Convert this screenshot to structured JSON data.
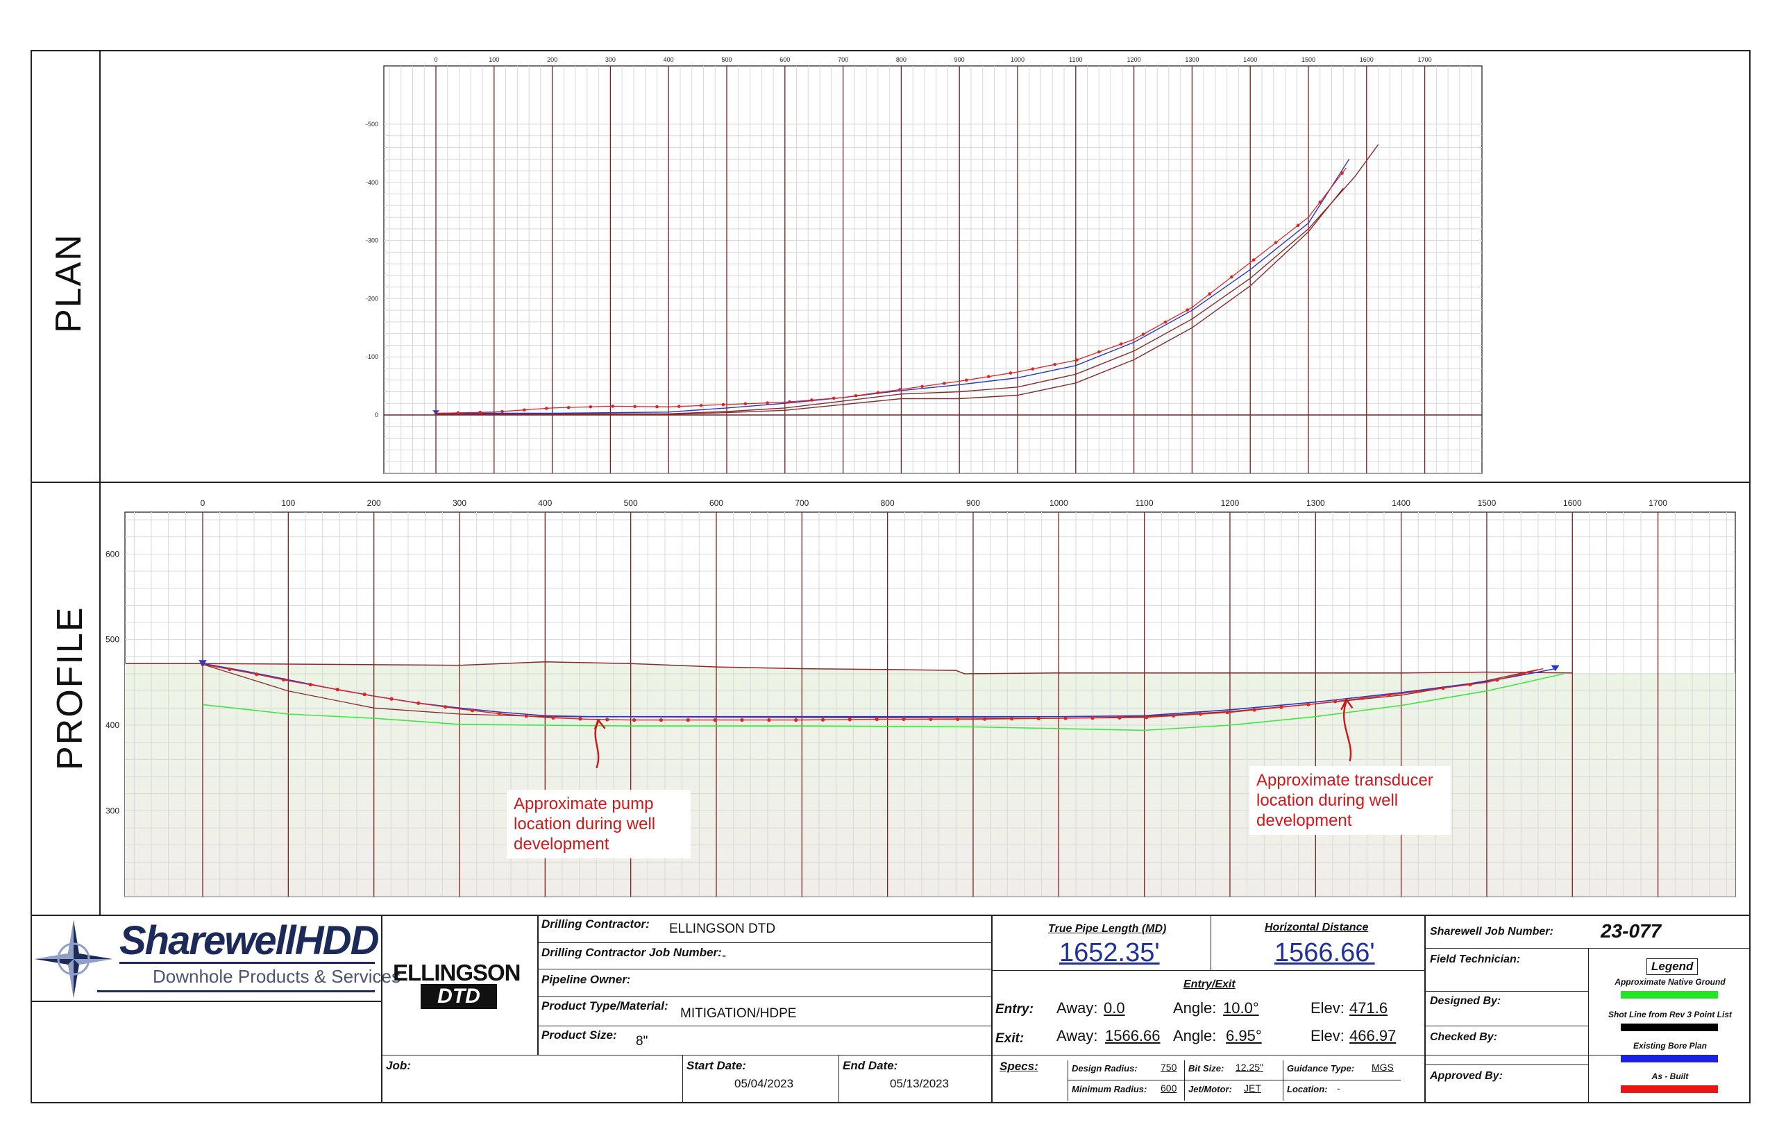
{
  "plan": {
    "label": "PLAN",
    "x_ticks": [
      0,
      100,
      200,
      300,
      400,
      500,
      600,
      700,
      800,
      900,
      1000,
      1100,
      1200,
      1300,
      1400,
      1500,
      1600,
      1700
    ],
    "y_ticks": [
      -500,
      -400,
      -300,
      -200,
      -100,
      0
    ]
  },
  "profile": {
    "label": "PROFILE",
    "x_ticks": [
      0,
      100,
      200,
      300,
      400,
      500,
      600,
      700,
      800,
      900,
      1000,
      1100,
      1200,
      1300,
      1400,
      1500,
      1600,
      1700
    ],
    "y_ticks": [
      600,
      500,
      400,
      300
    ]
  },
  "annotations": {
    "pump": "Approximate pump location during well development",
    "transducer": "Approximate transducer location during well development"
  },
  "title_block": {
    "logo_name": "SharewellHDD",
    "logo_tagline": "Downhole Products & Services",
    "ellingson_name": "ELLINGSON",
    "ellingson_sub": "DTD",
    "drilling_contractor_label": "Drilling Contractor:",
    "drilling_contractor": "ELLINGSON DTD",
    "contractor_job_number_label": "Drilling Contractor Job Number:",
    "contractor_job_number": "-",
    "pipeline_owner_label": "Pipeline Owner:",
    "product_type_label": "Product Type/Material:",
    "product_type": "MITIGATION/HDPE",
    "product_size_label": "Product Size:",
    "product_size": "8\"",
    "job_label": "Job:",
    "start_date_label": "Start Date:",
    "start_date": "05/04/2023",
    "end_date_label": "End Date:",
    "end_date": "05/13/2023",
    "true_pipe_length_label": "True Pipe Length (MD)",
    "true_pipe_length": "1652.35'",
    "horizontal_distance_label": "Horizontal Distance",
    "horizontal_distance": "1566.66'",
    "entry_exit_label": "Entry/Exit",
    "entry_label": "Entry:",
    "exit_label": "Exit:",
    "away_label": "Away:",
    "angle_label": "Angle:",
    "elev_label": "Elev:",
    "entry_away": "0.0",
    "entry_angle": "10.0°",
    "entry_elev": "471.6",
    "exit_away": "1566.66",
    "exit_angle": "6.95°",
    "exit_elev": "466.97",
    "specs_label": "Specs:",
    "design_radius_label": "Design Radius:",
    "design_radius": "750",
    "minimum_radius_label": "Minimum Radius:",
    "minimum_radius": "600",
    "bit_size_label": "Bit Size:",
    "bit_size": "12.25\"",
    "jet_motor_label": "Jet/Motor:",
    "jet_motor": "JET",
    "guidance_type_label": "Guidance Type:",
    "guidance_type": "MGS",
    "location_label": "Location:",
    "location": "-",
    "job_number_label": "Sharewell Job Number:",
    "job_number": "23-077",
    "field_technician_label": "Field Technician:",
    "designed_by_label": "Designed By:",
    "checked_by_label": "Checked By:",
    "approved_by_label": "Approved By:"
  },
  "legend": {
    "title": "Legend",
    "items": [
      {
        "label": "Approximate Native Ground",
        "color": "#22e52a"
      },
      {
        "label": "Shot Line from Rev 3 Point List",
        "color": "#000000"
      },
      {
        "label": "Existing Bore Plan",
        "color": "#1a22e0"
      },
      {
        "label": "As - Built",
        "color": "#ee1414"
      }
    ]
  },
  "colors": {
    "grid_major": "#7a2020",
    "grid_minor": "#d8d8d8",
    "as_built": "#e02424",
    "bore_plan": "#2a36c8",
    "native_ground": "#3ee83e",
    "surface": "#8a2a2a"
  }
}
